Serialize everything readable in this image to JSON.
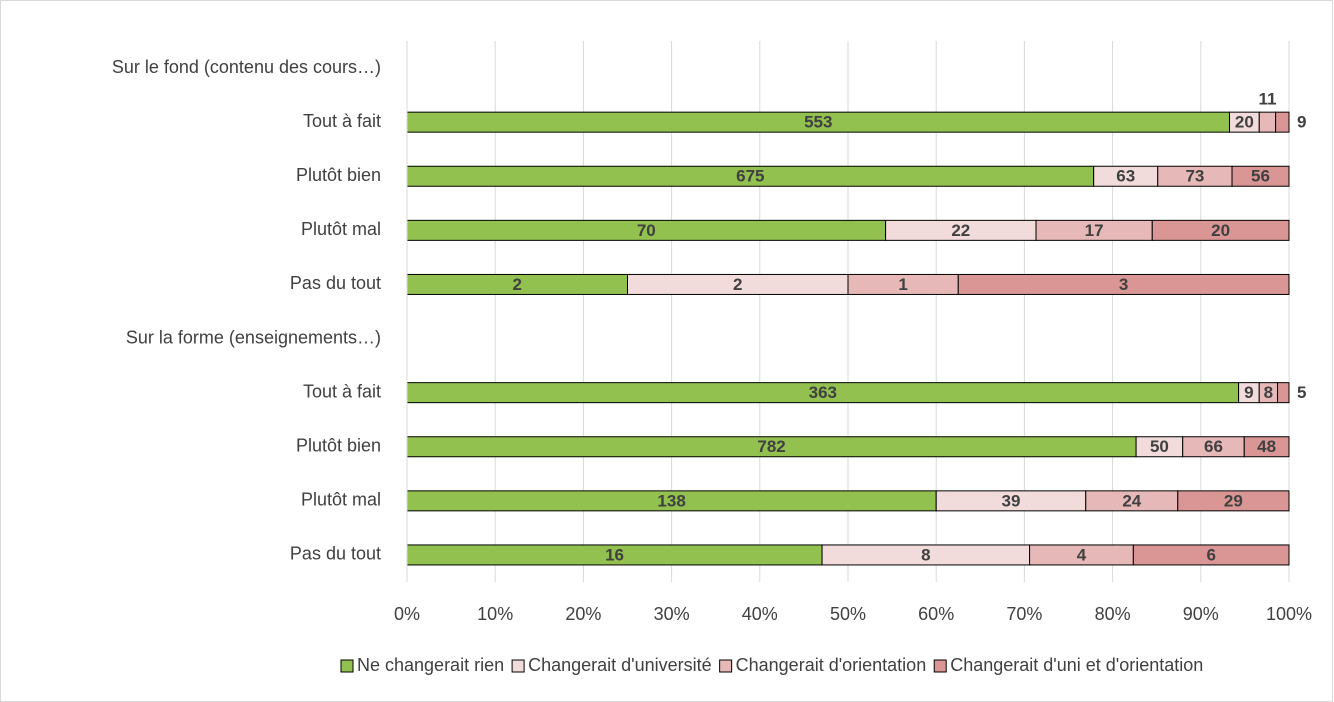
{
  "chart_data": {
    "type": "bar",
    "orientation": "horizontal",
    "stacking": "percent",
    "categories": [
      "Sur le fond (contenu des cours…)",
      "Tout à fait",
      "Plutôt bien",
      "Plutôt mal",
      "Pas du tout",
      "Sur la forme (enseignements…)",
      "Tout à fait",
      "Plutôt bien",
      "Plutôt mal",
      "Pas du tout"
    ],
    "series": [
      {
        "name": "Ne changerait rien",
        "color": "#92c150",
        "values": [
          null,
          553,
          675,
          70,
          2,
          null,
          363,
          782,
          138,
          16
        ]
      },
      {
        "name": "Changerait d'université",
        "color": "#f2dcdb",
        "values": [
          null,
          20,
          63,
          22,
          2,
          null,
          9,
          50,
          39,
          8
        ]
      },
      {
        "name": "Changerait d'orientation",
        "color": "#e6b9b8",
        "values": [
          null,
          11,
          73,
          17,
          1,
          null,
          8,
          66,
          24,
          4
        ]
      },
      {
        "name": "Changerait d'uni et d'orientation",
        "color": "#d99694",
        "values": [
          null,
          9,
          56,
          20,
          3,
          null,
          5,
          48,
          29,
          6
        ]
      }
    ],
    "xlim": [
      0,
      100
    ],
    "xticks": [
      {
        "value": 0,
        "label": "0%"
      },
      {
        "value": 10,
        "label": "10%"
      },
      {
        "value": 20,
        "label": "20%"
      },
      {
        "value": 30,
        "label": "30%"
      },
      {
        "value": 40,
        "label": "40%"
      },
      {
        "value": 50,
        "label": "50%"
      },
      {
        "value": 60,
        "label": "60%"
      },
      {
        "value": 70,
        "label": "70%"
      },
      {
        "value": 80,
        "label": "80%"
      },
      {
        "value": 90,
        "label": "90%"
      },
      {
        "value": 100,
        "label": "100%"
      }
    ],
    "grid": true,
    "legend": "bottom"
  }
}
